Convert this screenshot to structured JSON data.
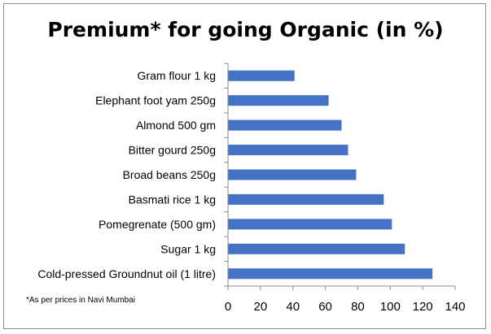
{
  "chart_data": {
    "type": "bar",
    "orientation": "horizontal",
    "title": "Premium* for going Organic (in %)",
    "categories": [
      "Gram flour 1 kg",
      "Elephant foot yam 250g",
      "Almond 500 gm",
      "Bitter gourd 250g",
      "Broad beans 250g",
      "Basmati rice 1 kg",
      "Pomegrenate (500 gm)",
      "Sugar 1 kg",
      "Cold-pressed Groundnut oil (1 litre)"
    ],
    "values": [
      41,
      62,
      70,
      74,
      79,
      96,
      101,
      109,
      126
    ],
    "xlim": [
      0,
      140
    ],
    "xticks": [
      "0",
      "20",
      "40",
      "60",
      "80",
      "100",
      "120",
      "140"
    ],
    "grid": false,
    "bar_color": "#4472c4",
    "footnote": "*As per  prices in Navi Mumbai"
  }
}
